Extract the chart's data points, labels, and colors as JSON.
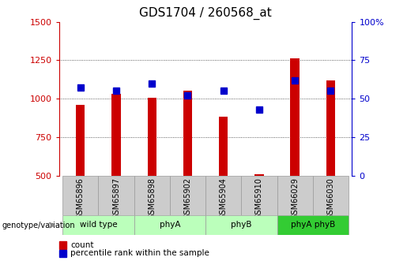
{
  "title": "GDS1704 / 260568_at",
  "samples": [
    "GSM65896",
    "GSM65897",
    "GSM65898",
    "GSM65902",
    "GSM65904",
    "GSM65910",
    "GSM66029",
    "GSM66030"
  ],
  "groups": [
    {
      "label": "wild type",
      "color": "#bbffbb",
      "span": [
        0,
        2
      ]
    },
    {
      "label": "phyA",
      "color": "#bbffbb",
      "span": [
        2,
        4
      ]
    },
    {
      "label": "phyB",
      "color": "#bbffbb",
      "span": [
        4,
        6
      ]
    },
    {
      "label": "phyA phyB",
      "color": "#33cc33",
      "span": [
        6,
        8
      ]
    }
  ],
  "counts": [
    960,
    1030,
    1005,
    1050,
    880,
    510,
    1260,
    1120
  ],
  "percentiles": [
    57,
    55,
    60,
    52,
    55,
    43,
    62,
    55
  ],
  "count_color": "#cc0000",
  "percentile_color": "#0000cc",
  "ylim_left": [
    500,
    1500
  ],
  "ylim_right": [
    0,
    100
  ],
  "yticks_left": [
    500,
    750,
    1000,
    1250,
    1500
  ],
  "yticks_right": [
    0,
    25,
    50,
    75,
    100
  ],
  "grid_yticks": [
    750,
    1000,
    1250
  ],
  "grid_color": "#333333",
  "bar_width": 0.25,
  "marker_size": 6,
  "sample_bg": "#cccccc",
  "sample_border": "#999999"
}
